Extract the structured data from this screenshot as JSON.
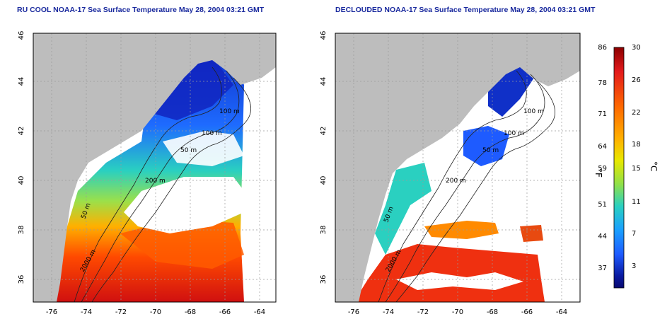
{
  "titles": {
    "left": "RU COOL NOAA-17 Sea Surface Temperature May 28, 2004 03:21 GMT",
    "right": "DECLOUDED NOAA-17 Sea Surface Temperature May 28, 2004 03:21 GMT"
  },
  "axes": {
    "lon_ticks": [
      "-76",
      "-74",
      "-72",
      "-70",
      "-68",
      "-66",
      "-64"
    ],
    "lat_ticks": [
      "36",
      "38",
      "40",
      "42",
      "44",
      "46"
    ]
  },
  "contour_labels": {
    "left": [
      "100 m",
      "100 m",
      "50 m",
      "200 m",
      "50 m",
      "2000 m"
    ],
    "right": [
      "100 m",
      "100 m",
      "50 m",
      "200 m",
      "50 m",
      "2000 m"
    ]
  },
  "colorbar": {
    "fahrenheit_ticks": [
      "86",
      "78",
      "71",
      "64",
      "59",
      "51",
      "44",
      "37"
    ],
    "celsius_ticks": [
      "30",
      "26",
      "22",
      "18",
      "15",
      "11",
      "7",
      "3"
    ],
    "fahrenheit_unit": "°F",
    "celsius_unit": "°C",
    "colors": [
      "#8b0000",
      "#e31a1c",
      "#ff6a00",
      "#ffb000",
      "#e8e800",
      "#8fe04a",
      "#2ad0c0",
      "#1a9fff",
      "#1e5bff",
      "#0a1aa0",
      "#080870"
    ]
  },
  "colors": {
    "land": "#bdbdbd",
    "cloud": "#ffffff",
    "title": "#1a2a9e",
    "grid": "#9a9a9a"
  }
}
